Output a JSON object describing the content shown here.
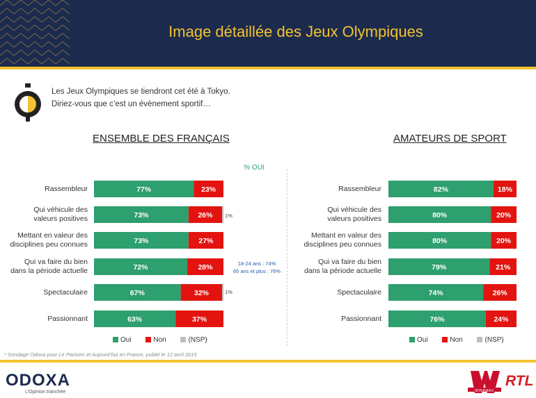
{
  "header": {
    "title": "Image détaillée des Jeux Olympiques",
    "accent": "#f2c230",
    "background": "#1c2b4d"
  },
  "question": {
    "line1": "Les Jeux Olympiques se tiendront cet été à Tokyo.",
    "line2": "Diriez-vous que c’est un évènement sportif…",
    "icon": "stopwatch-icon"
  },
  "pct_oui_label": "% OUI",
  "notes": {
    "nsp_1": "1%",
    "nsp_2": "1%",
    "age_1": "18-24 ans : 74%",
    "age_2": "65 ans et plus : 76%"
  },
  "legend": {
    "oui": "Oui",
    "non": "Non",
    "nsp": "(NSP)"
  },
  "colors": {
    "oui": "#2e9f6e",
    "non": "#e3140f",
    "nsp": "#bfbfbf"
  },
  "footnote": "* Sondage Odoxa pour Le Parisien et Aujourd’hui en France, publié le 12 avril 2015",
  "footer": {
    "logo": "ODOXA",
    "tagline": "L’Opinion tranchée",
    "partner_1": "WINAMAX",
    "partner_2": "RTL"
  },
  "chart_data": [
    {
      "type": "bar",
      "stacked": true,
      "orientation": "horizontal",
      "title": "ENSEMBLE DES FRANÇAIS",
      "categories": [
        [
          "Rassembleur"
        ],
        [
          "Qui véhicule des",
          "valeurs positives"
        ],
        [
          "Mettant en valeur des",
          "disciplines peu connues"
        ],
        [
          "Qui va faire du bien",
          "dans la période actuelle"
        ],
        [
          "Spectaculaire"
        ],
        [
          "Passionnant"
        ]
      ],
      "series": [
        {
          "name": "Oui",
          "values": [
            77,
            73,
            73,
            72,
            67,
            63
          ]
        },
        {
          "name": "Non",
          "values": [
            23,
            26,
            27,
            28,
            32,
            37
          ]
        },
        {
          "name": "(NSP)",
          "values": [
            0,
            1,
            0,
            0,
            1,
            0
          ]
        }
      ],
      "xlim": [
        0,
        100
      ],
      "legend": "bottom"
    },
    {
      "type": "bar",
      "stacked": true,
      "orientation": "horizontal",
      "title": "AMATEURS DE SPORT",
      "categories": [
        [
          "Rassembleur"
        ],
        [
          "Qui véhicule des",
          "valeurs positives"
        ],
        [
          "Mettant en valeur des",
          "disciplines peu connues"
        ],
        [
          "Qui va faire du bien",
          "dans la période actuelle"
        ],
        [
          "Spectaculaire"
        ],
        [
          "Passionnant"
        ]
      ],
      "series": [
        {
          "name": "Oui",
          "values": [
            82,
            80,
            80,
            79,
            74,
            76
          ]
        },
        {
          "name": "Non",
          "values": [
            18,
            20,
            20,
            21,
            26,
            24
          ]
        },
        {
          "name": "(NSP)",
          "values": [
            0,
            0,
            0,
            0,
            0,
            0
          ]
        }
      ],
      "xlim": [
        0,
        100
      ],
      "legend": "bottom"
    }
  ]
}
